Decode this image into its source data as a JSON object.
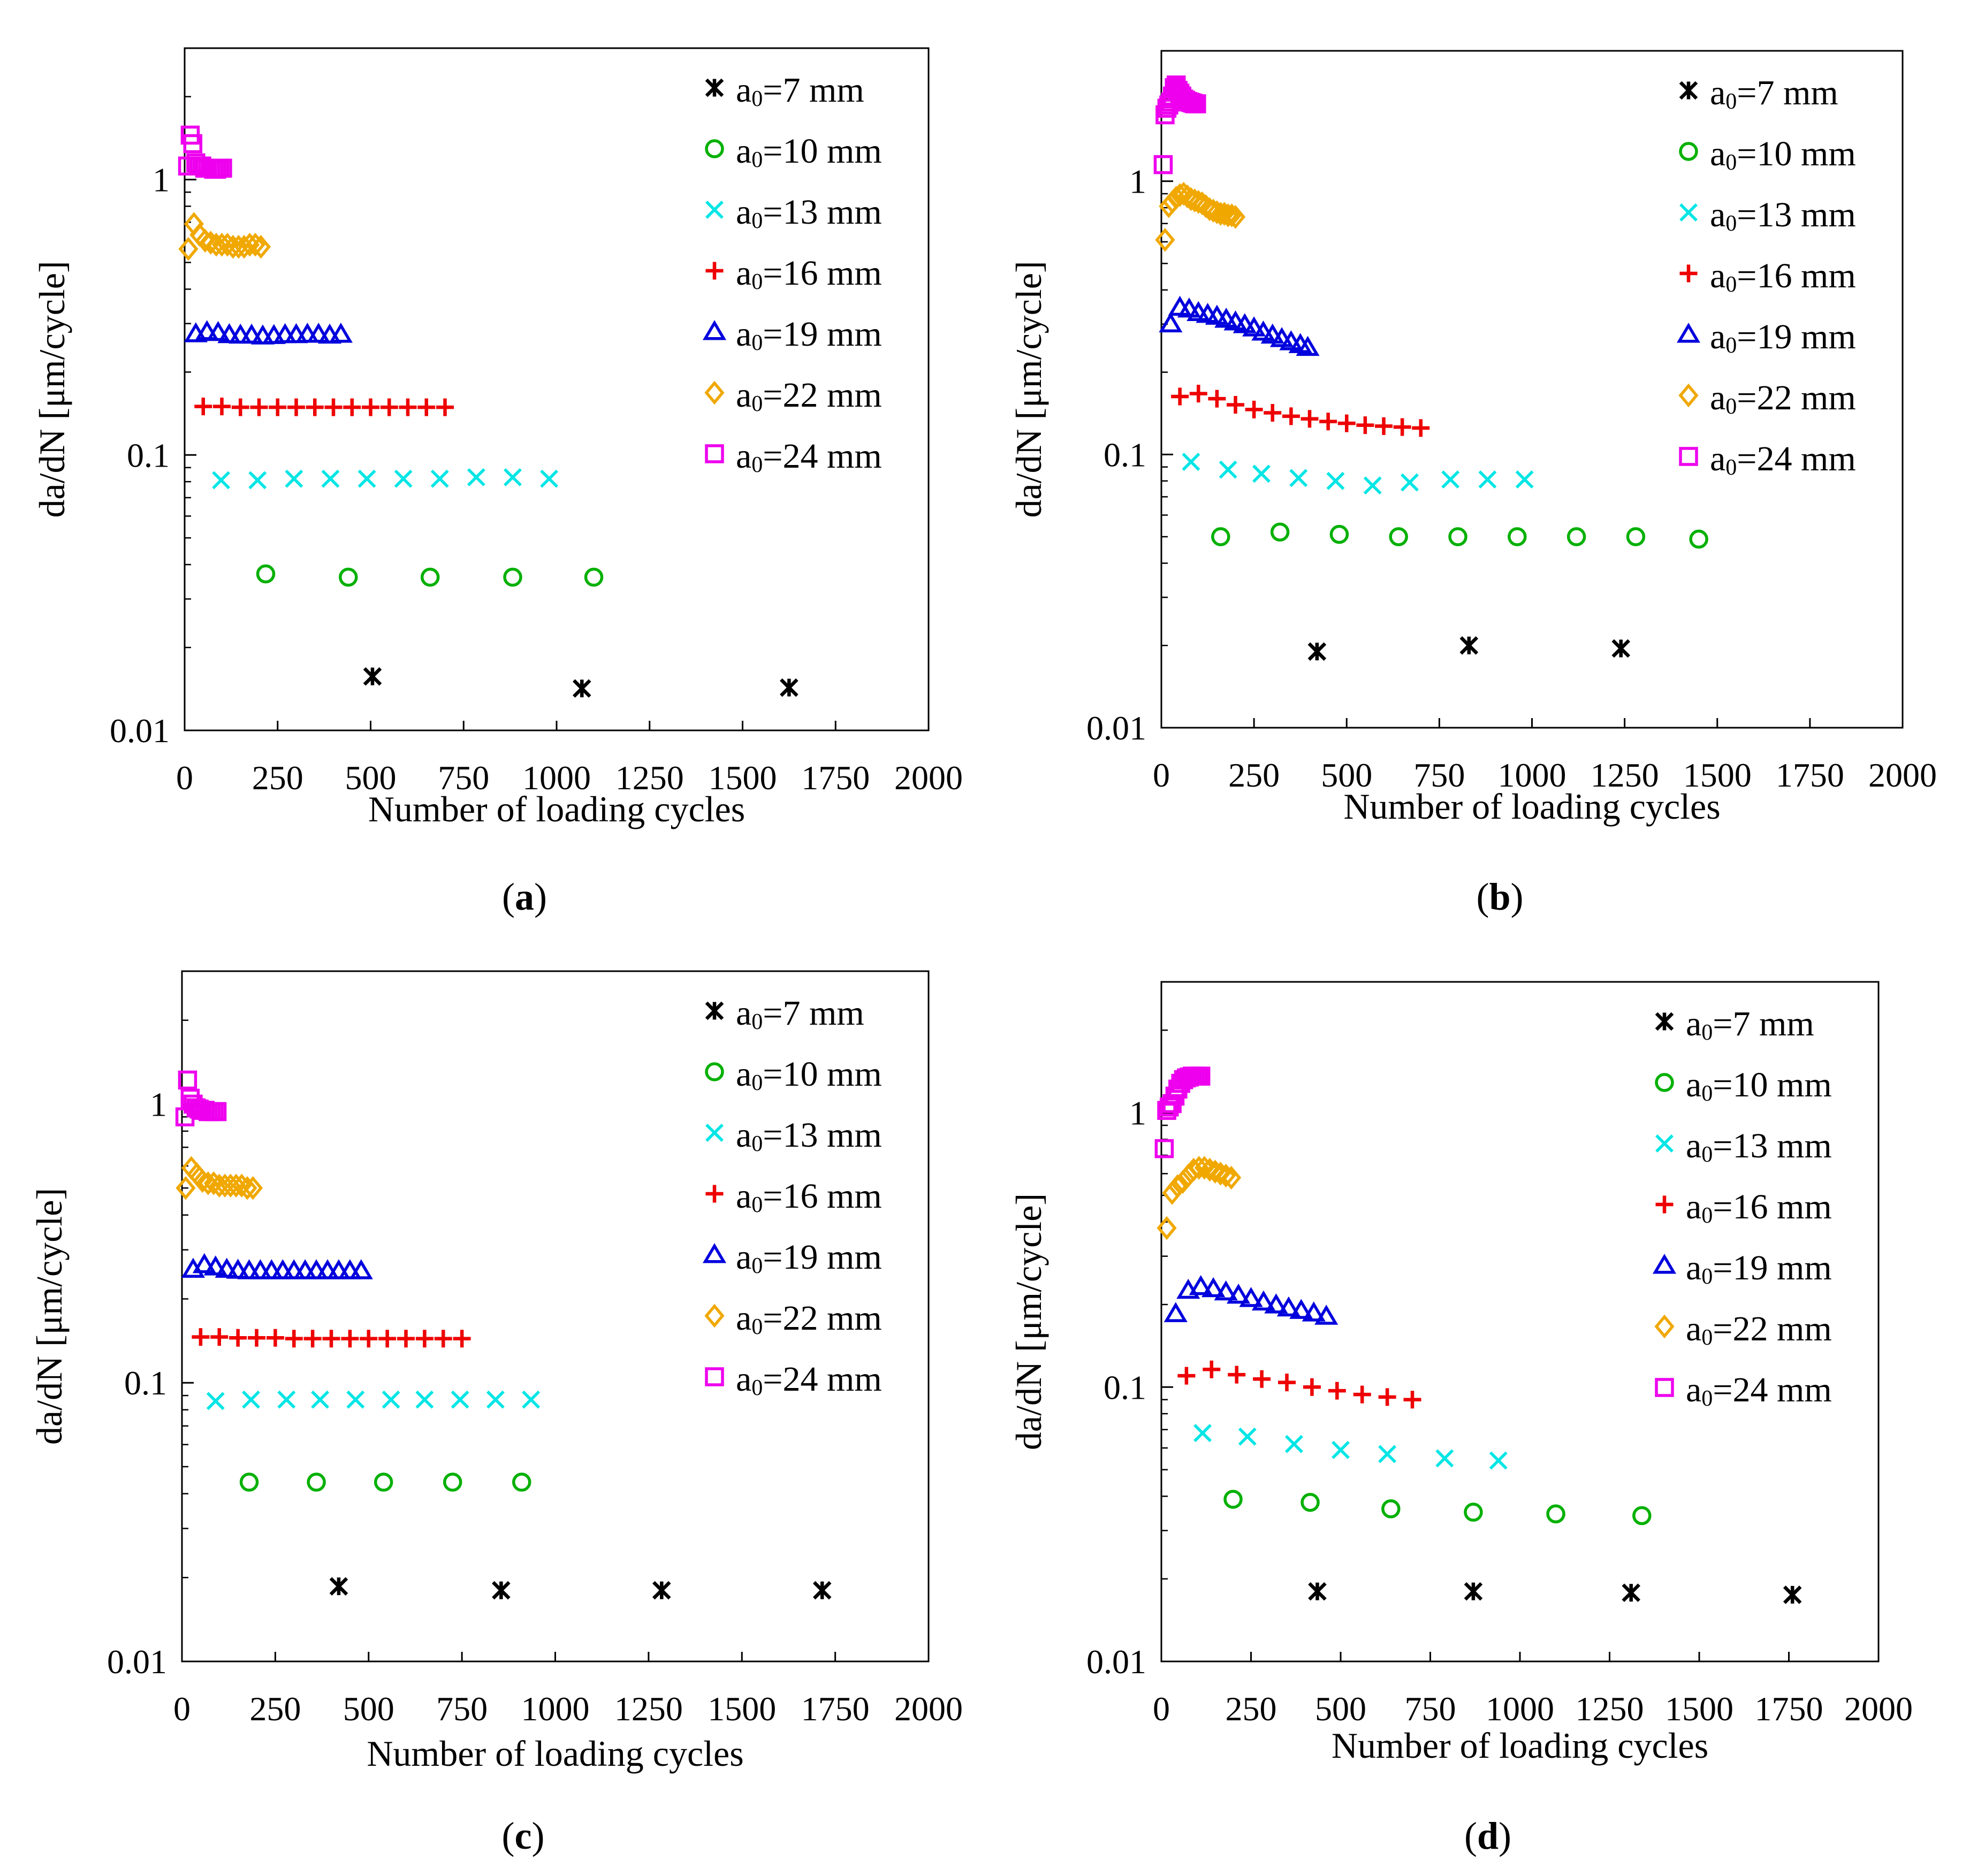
{
  "figure": {
    "axis_color": "#000000",
    "legend_prefix": "a",
    "legend_subscript": "0",
    "legend_unit": "mm",
    "series_styles": [
      {
        "a0": 7,
        "marker": "asterisk",
        "color": "#000000"
      },
      {
        "a0": 10,
        "marker": "circle",
        "color": "#00b000"
      },
      {
        "a0": 13,
        "marker": "x",
        "color": "#00e5e5"
      },
      {
        "a0": 16,
        "marker": "plus",
        "color": "#ee0000"
      },
      {
        "a0": 19,
        "marker": "triangle",
        "color": "#0000dd"
      },
      {
        "a0": 22,
        "marker": "diamond",
        "color": "#f0a800"
      },
      {
        "a0": 24,
        "marker": "square",
        "color": "#ee00ee"
      }
    ]
  },
  "chart_data": [
    {
      "panel": "a",
      "caption": "(a)",
      "type": "scatter",
      "xlabel": "Number of loading cycles",
      "ylabel": "da/dN [μm/cycle]",
      "xlim": [
        0,
        2000
      ],
      "xticks": [
        "0",
        "250",
        "500",
        "750",
        "1000",
        "1250",
        "1500",
        "1750",
        "2000"
      ],
      "ylim": [
        0.01,
        3
      ],
      "yscale": "log",
      "yticks": [
        "0.01",
        "0.1",
        "1"
      ],
      "legend_position": "top-right",
      "series": [
        {
          "name": "a0=7 mm",
          "x": [
            505,
            1068,
            1625
          ],
          "y": [
            0.0157,
            0.0142,
            0.0143
          ]
        },
        {
          "name": "a0=10 mm",
          "x": [
            218,
            440,
            660,
            882,
            1100
          ],
          "y": [
            0.037,
            0.036,
            0.036,
            0.036,
            0.036
          ]
        },
        {
          "name": "a0=13 mm",
          "x": [
            98,
            196,
            294,
            392,
            490,
            588,
            686,
            784,
            882,
            980
          ],
          "y": [
            0.081,
            0.081,
            0.082,
            0.082,
            0.082,
            0.082,
            0.082,
            0.083,
            0.083,
            0.082
          ]
        },
        {
          "name": "a0=16 mm",
          "x": [
            50,
            100,
            150,
            200,
            250,
            300,
            350,
            400,
            450,
            500,
            550,
            600,
            650,
            700
          ],
          "y": [
            0.15,
            0.15,
            0.149,
            0.149,
            0.149,
            0.149,
            0.149,
            0.149,
            0.149,
            0.149,
            0.149,
            0.149,
            0.149,
            0.149
          ]
        },
        {
          "name": "a0=19 mm",
          "x": [
            30,
            60,
            90,
            120,
            150,
            180,
            210,
            240,
            270,
            300,
            330,
            360,
            390,
            420
          ],
          "y": [
            0.275,
            0.28,
            0.278,
            0.273,
            0.272,
            0.272,
            0.27,
            0.271,
            0.273,
            0.273,
            0.274,
            0.274,
            0.272,
            0.274
          ]
        },
        {
          "name": "a0=22 mm",
          "x": [
            10,
            25,
            40,
            55,
            70,
            85,
            100,
            115,
            130,
            145,
            160,
            175,
            190,
            205
          ],
          "y": [
            0.56,
            0.69,
            0.63,
            0.6,
            0.59,
            0.58,
            0.58,
            0.58,
            0.57,
            0.57,
            0.57,
            0.58,
            0.58,
            0.57
          ]
        },
        {
          "name": "a0=24 mm",
          "x": [
            8,
            15,
            22,
            30,
            38,
            46,
            54,
            62,
            70,
            78,
            86,
            94,
            102
          ],
          "y": [
            1.12,
            1.45,
            1.35,
            1.15,
            1.12,
            1.12,
            1.1,
            1.1,
            1.1,
            1.09,
            1.09,
            1.1,
            1.1
          ]
        }
      ]
    },
    {
      "panel": "b",
      "caption": "(b)",
      "type": "scatter",
      "xlabel": "Number of loading cycles",
      "ylabel": "da/dN [μm/cycle]",
      "xlim": [
        0,
        2000
      ],
      "xticks": [
        "0",
        "250",
        "500",
        "750",
        "1000",
        "1250",
        "1500",
        "1750",
        "2000"
      ],
      "ylim": [
        0.01,
        3
      ],
      "yscale": "log",
      "yticks": [
        "0.01",
        "0.1",
        "1"
      ],
      "legend_position": "top-right",
      "series": [
        {
          "name": "a0=7 mm",
          "x": [
            420,
            830,
            1240
          ],
          "y": [
            0.019,
            0.02,
            0.0195
          ]
        },
        {
          "name": "a0=10 mm",
          "x": [
            160,
            320,
            480,
            640,
            800,
            960,
            1120,
            1280,
            1450
          ],
          "y": [
            0.05,
            0.052,
            0.051,
            0.05,
            0.05,
            0.05,
            0.05,
            0.05,
            0.049
          ]
        },
        {
          "name": "a0=13 mm",
          "x": [
            80,
            180,
            270,
            370,
            470,
            570,
            670,
            780,
            880,
            980
          ],
          "y": [
            0.094,
            0.088,
            0.085,
            0.082,
            0.08,
            0.077,
            0.079,
            0.081,
            0.081,
            0.081
          ]
        },
        {
          "name": "a0=16 mm",
          "x": [
            50,
            100,
            150,
            200,
            250,
            300,
            350,
            400,
            450,
            500,
            550,
            600,
            650,
            700
          ],
          "y": [
            0.163,
            0.167,
            0.16,
            0.152,
            0.146,
            0.142,
            0.138,
            0.135,
            0.132,
            0.13,
            0.128,
            0.127,
            0.126,
            0.125
          ]
        },
        {
          "name": "a0=19 mm",
          "x": [
            25,
            50,
            75,
            100,
            125,
            150,
            175,
            200,
            225,
            250,
            275,
            300,
            325,
            350,
            375,
            395
          ],
          "y": [
            0.3,
            0.345,
            0.34,
            0.33,
            0.325,
            0.32,
            0.312,
            0.305,
            0.298,
            0.29,
            0.28,
            0.273,
            0.265,
            0.258,
            0.252,
            0.246
          ]
        },
        {
          "name": "a0=22 mm",
          "x": [
            10,
            20,
            30,
            40,
            50,
            60,
            70,
            80,
            90,
            100,
            110,
            120,
            130,
            140,
            150,
            160,
            170,
            180,
            190,
            200
          ],
          "y": [
            0.61,
            0.81,
            0.84,
            0.87,
            0.89,
            0.9,
            0.88,
            0.86,
            0.85,
            0.84,
            0.83,
            0.81,
            0.79,
            0.78,
            0.77,
            0.76,
            0.76,
            0.75,
            0.75,
            0.74
          ]
        },
        {
          "name": "a0=24 mm",
          "x": [
            5,
            10,
            15,
            20,
            25,
            30,
            35,
            40,
            45,
            50,
            55,
            60,
            65,
            70,
            75,
            80,
            85,
            90,
            95
          ],
          "y": [
            1.15,
            1.75,
            1.85,
            1.9,
            1.95,
            2.05,
            2.2,
            2.25,
            2.15,
            2.1,
            2.05,
            2.0,
            1.98,
            1.96,
            1.95,
            1.94,
            1.93,
            1.92,
            1.92
          ]
        }
      ]
    },
    {
      "panel": "c",
      "caption": "(c)",
      "type": "scatter",
      "xlabel": "Number of loading cycles",
      "ylabel": "da/dN [μm/cycle]",
      "xlim": [
        0,
        2000
      ],
      "xticks": [
        "0",
        "250",
        "500",
        "750",
        "1000",
        "1250",
        "1500",
        "1750",
        "2000"
      ],
      "ylim": [
        0.01,
        3
      ],
      "yscale": "log",
      "yticks": [
        "0.01",
        "0.1",
        "1"
      ],
      "legend_position": "top-right",
      "series": [
        {
          "name": "a0=7 mm",
          "x": [
            420,
            855,
            1285,
            1715
          ],
          "y": [
            0.0186,
            0.018,
            0.018,
            0.018
          ]
        },
        {
          "name": "a0=10 mm",
          "x": [
            180,
            360,
            540,
            725,
            910
          ],
          "y": [
            0.044,
            0.044,
            0.044,
            0.044,
            0.044
          ]
        },
        {
          "name": "a0=13 mm",
          "x": [
            90,
            185,
            280,
            370,
            465,
            560,
            650,
            745,
            840,
            935
          ],
          "y": [
            0.086,
            0.087,
            0.087,
            0.087,
            0.087,
            0.087,
            0.087,
            0.087,
            0.087,
            0.087
          ]
        },
        {
          "name": "a0=16 mm",
          "x": [
            50,
            100,
            150,
            200,
            250,
            300,
            350,
            400,
            450,
            500,
            550,
            600,
            650,
            700,
            750
          ],
          "y": [
            0.146,
            0.146,
            0.145,
            0.145,
            0.145,
            0.144,
            0.144,
            0.144,
            0.144,
            0.144,
            0.144,
            0.144,
            0.144,
            0.144,
            0.144
          ]
        },
        {
          "name": "a0=19 mm",
          "x": [
            30,
            60,
            90,
            120,
            150,
            180,
            210,
            240,
            270,
            300,
            330,
            360,
            390,
            420,
            450,
            480
          ],
          "y": [
            0.255,
            0.265,
            0.26,
            0.255,
            0.253,
            0.252,
            0.252,
            0.252,
            0.252,
            0.252,
            0.252,
            0.252,
            0.252,
            0.252,
            0.252,
            0.252
          ]
        },
        {
          "name": "a0=22 mm",
          "x": [
            10,
            25,
            40,
            55,
            70,
            85,
            100,
            115,
            130,
            145,
            160,
            175,
            190
          ],
          "y": [
            0.5,
            0.59,
            0.56,
            0.53,
            0.52,
            0.52,
            0.51,
            0.51,
            0.51,
            0.51,
            0.51,
            0.5,
            0.5
          ]
        },
        {
          "name": "a0=24 mm",
          "x": [
            8,
            15,
            22,
            30,
            38,
            46,
            54,
            62,
            70,
            78,
            86,
            94
          ],
          "y": [
            0.9,
            1.22,
            1.05,
            1.0,
            0.97,
            0.96,
            0.95,
            0.95,
            0.94,
            0.94,
            0.94,
            0.94
          ]
        }
      ]
    },
    {
      "panel": "d",
      "caption": "(d)",
      "type": "scatter",
      "xlabel": "Number of loading cycles",
      "ylabel": "da/dN [μm/cycle]",
      "xlim": [
        0,
        2000
      ],
      "xticks": [
        "0",
        "250",
        "500",
        "750",
        "1000",
        "1250",
        "1500",
        "1750",
        "2000"
      ],
      "ylim": [
        0.01,
        3
      ],
      "yscale": "log",
      "yticks": [
        "0.01",
        "0.1",
        "1"
      ],
      "legend_position": "top-right",
      "series": [
        {
          "name": "a0=7 mm",
          "x": [
            435,
            870,
            1310,
            1760
          ],
          "y": [
            0.018,
            0.018,
            0.0178,
            0.0175
          ]
        },
        {
          "name": "a0=10 mm",
          "x": [
            200,
            415,
            640,
            870,
            1100,
            1340
          ],
          "y": [
            0.039,
            0.038,
            0.036,
            0.035,
            0.0345,
            0.034
          ]
        },
        {
          "name": "a0=13 mm",
          "x": [
            115,
            240,
            370,
            500,
            630,
            790,
            940
          ],
          "y": [
            0.068,
            0.066,
            0.062,
            0.059,
            0.057,
            0.055,
            0.054
          ]
        },
        {
          "name": "a0=16 mm",
          "x": [
            70,
            140,
            210,
            280,
            350,
            420,
            490,
            560,
            630,
            700
          ],
          "y": [
            0.11,
            0.116,
            0.111,
            0.107,
            0.104,
            0.1,
            0.097,
            0.094,
            0.092,
            0.09
          ]
        },
        {
          "name": "a0=19 mm",
          "x": [
            40,
            75,
            110,
            145,
            180,
            215,
            250,
            285,
            320,
            355,
            390,
            425,
            460
          ],
          "y": [
            0.185,
            0.225,
            0.232,
            0.228,
            0.222,
            0.216,
            0.21,
            0.204,
            0.199,
            0.194,
            0.19,
            0.186,
            0.181
          ]
        },
        {
          "name": "a0=22 mm",
          "x": [
            15,
            30,
            45,
            60,
            75,
            90,
            105,
            120,
            135,
            150,
            165,
            180,
            195
          ],
          "y": [
            0.38,
            0.51,
            0.54,
            0.56,
            0.59,
            0.62,
            0.63,
            0.63,
            0.62,
            0.61,
            0.6,
            0.59,
            0.58
          ]
        },
        {
          "name": "a0=24 mm",
          "x": [
            8,
            15,
            22,
            30,
            38,
            46,
            54,
            62,
            70,
            78,
            86,
            94,
            102,
            110
          ],
          "y": [
            0.74,
            1.02,
            1.05,
            1.08,
            1.15,
            1.22,
            1.28,
            1.32,
            1.34,
            1.35,
            1.36,
            1.36,
            1.36,
            1.36
          ]
        }
      ]
    }
  ]
}
